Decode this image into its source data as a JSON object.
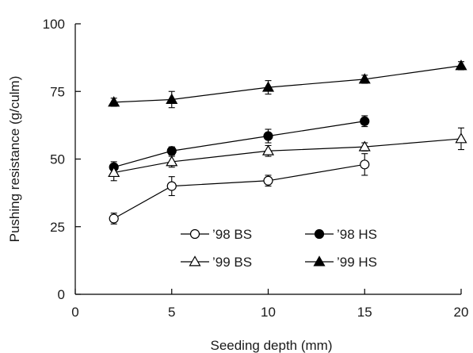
{
  "chart_data": {
    "type": "line",
    "title": "",
    "xlabel": "Seeding depth (mm)",
    "ylabel": "Pushing resistance (g/culm)",
    "xlim": [
      0,
      20
    ],
    "ylim": [
      0,
      100
    ],
    "xticks": [
      0,
      5,
      10,
      15,
      20
    ],
    "yticks": [
      0,
      25,
      50,
      75,
      100
    ],
    "grid": false,
    "legend_placement": "bottom-right",
    "series": [
      {
        "name": "’98 BS",
        "marker": "circle-open",
        "x": [
          2,
          5,
          10,
          15
        ],
        "y": [
          28,
          40,
          42,
          48
        ],
        "err": [
          2,
          3.5,
          2,
          4
        ]
      },
      {
        "name": "’98 HS",
        "marker": "circle-filled",
        "x": [
          2,
          5,
          10,
          15
        ],
        "y": [
          47,
          53,
          58.5,
          64
        ],
        "err": [
          2,
          1.5,
          2.5,
          2
        ]
      },
      {
        "name": "’99 BS",
        "marker": "triangle-open",
        "x": [
          2,
          5,
          10,
          15,
          20
        ],
        "y": [
          45,
          49,
          53,
          54.5,
          57.5
        ],
        "err": [
          3,
          2,
          2,
          1.5,
          4
        ]
      },
      {
        "name": "’99 HS",
        "marker": "triangle-filled",
        "x": [
          2,
          5,
          10,
          15,
          20
        ],
        "y": [
          71,
          72,
          76.5,
          79.5,
          84.5
        ],
        "err": [
          1.5,
          3,
          2.5,
          1.5,
          1.5
        ]
      }
    ],
    "legend_entries": [
      {
        "series_index": 0,
        "label": "’98 BS"
      },
      {
        "series_index": 1,
        "label": "’98 HS"
      },
      {
        "series_index": 2,
        "label": "’99 BS"
      },
      {
        "series_index": 3,
        "label": "’99 HS"
      }
    ]
  }
}
